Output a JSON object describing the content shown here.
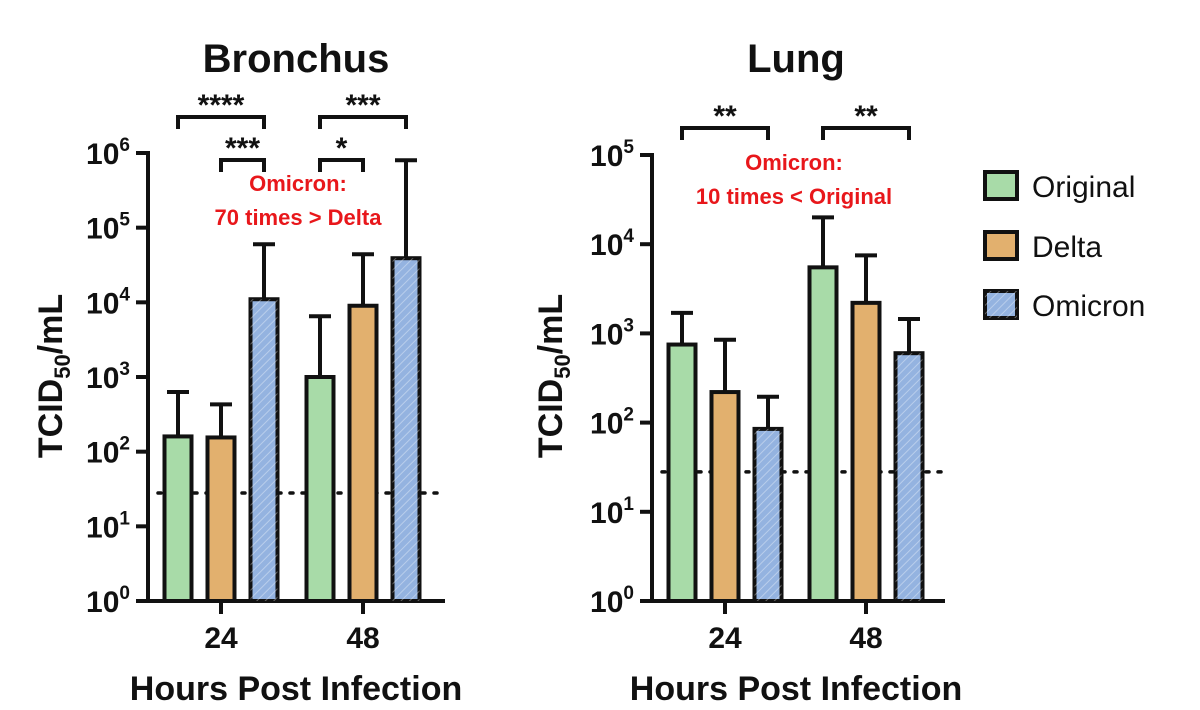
{
  "colors": {
    "original": "#a8dba8",
    "delta": "#e2b06e",
    "omicron": "#94b3e0",
    "annotation": "#e8171b",
    "ink": "#111111"
  },
  "legend": {
    "placement": "right",
    "items": [
      {
        "name": "Original",
        "color": "#a8dba8"
      },
      {
        "name": "Delta",
        "color": "#e2b06e"
      },
      {
        "name": "Omicron",
        "color": "#94b3e0"
      }
    ]
  },
  "chart_data": [
    {
      "type": "bar",
      "title": "Bronchus",
      "xlabel": "Hours Post Infection",
      "ylabel_base": "TCID",
      "ylabel_sub": "50",
      "ylabel_tail": "/mL",
      "yscale": "log",
      "ylim": [
        1,
        1000000
      ],
      "yticks": [
        {
          "value": 1,
          "base": "10",
          "exp": "0"
        },
        {
          "value": 10,
          "base": "10",
          "exp": "1"
        },
        {
          "value": 100,
          "base": "10",
          "exp": "2"
        },
        {
          "value": 1000,
          "base": "10",
          "exp": "3"
        },
        {
          "value": 10000,
          "base": "10",
          "exp": "4"
        },
        {
          "value": 100000,
          "base": "10",
          "exp": "5"
        },
        {
          "value": 1000000,
          "base": "10",
          "exp": "6"
        }
      ],
      "categories": [
        "24",
        "48"
      ],
      "series": [
        {
          "name": "Original",
          "values": [
            160,
            1000
          ],
          "error_upper": [
            630,
            6500
          ]
        },
        {
          "name": "Delta",
          "values": [
            155,
            9000
          ],
          "error_upper": [
            430,
            44000
          ]
        },
        {
          "name": "Omicron",
          "values": [
            11000,
            39000
          ],
          "error_upper": [
            60000,
            800000
          ]
        }
      ],
      "detection_limit": 28,
      "significance": [
        {
          "label": "****",
          "category": "24",
          "from": "Original",
          "to": "Omicron",
          "level": 2
        },
        {
          "label": "***",
          "category": "24",
          "from": "Delta",
          "to": "Omicron",
          "level": 1
        },
        {
          "label": "***",
          "category": "48",
          "from": "Original",
          "to": "Omicron",
          "level": 2
        },
        {
          "label": "*",
          "category": "48",
          "from": "Original",
          "to": "Delta",
          "level": 1
        }
      ],
      "annotation": [
        "Omicron:",
        "70 times > Delta"
      ]
    },
    {
      "type": "bar",
      "title": "Lung",
      "xlabel": "Hours Post Infection",
      "ylabel_base": "TCID",
      "ylabel_sub": "50",
      "ylabel_tail": "/mL",
      "yscale": "log",
      "ylim": [
        1,
        100000
      ],
      "yticks": [
        {
          "value": 1,
          "base": "10",
          "exp": "0"
        },
        {
          "value": 10,
          "base": "10",
          "exp": "1"
        },
        {
          "value": 100,
          "base": "10",
          "exp": "2"
        },
        {
          "value": 1000,
          "base": "10",
          "exp": "3"
        },
        {
          "value": 10000,
          "base": "10",
          "exp": "4"
        },
        {
          "value": 100000,
          "base": "10",
          "exp": "5"
        }
      ],
      "categories": [
        "24",
        "48"
      ],
      "series": [
        {
          "name": "Original",
          "values": [
            750,
            5500
          ],
          "error_upper": [
            1700,
            20000
          ]
        },
        {
          "name": "Delta",
          "values": [
            220,
            2200
          ],
          "error_upper": [
            850,
            7500
          ]
        },
        {
          "name": "Omicron",
          "values": [
            85,
            600
          ],
          "error_upper": [
            195,
            1450
          ]
        }
      ],
      "detection_limit": 28,
      "significance": [
        {
          "label": "**",
          "category": "24",
          "from": "Original",
          "to": "Omicron",
          "level": 1
        },
        {
          "label": "**",
          "category": "48",
          "from": "Original",
          "to": "Omicron",
          "level": 1
        }
      ],
      "annotation": [
        "Omicron:",
        "10 times < Original"
      ]
    }
  ]
}
